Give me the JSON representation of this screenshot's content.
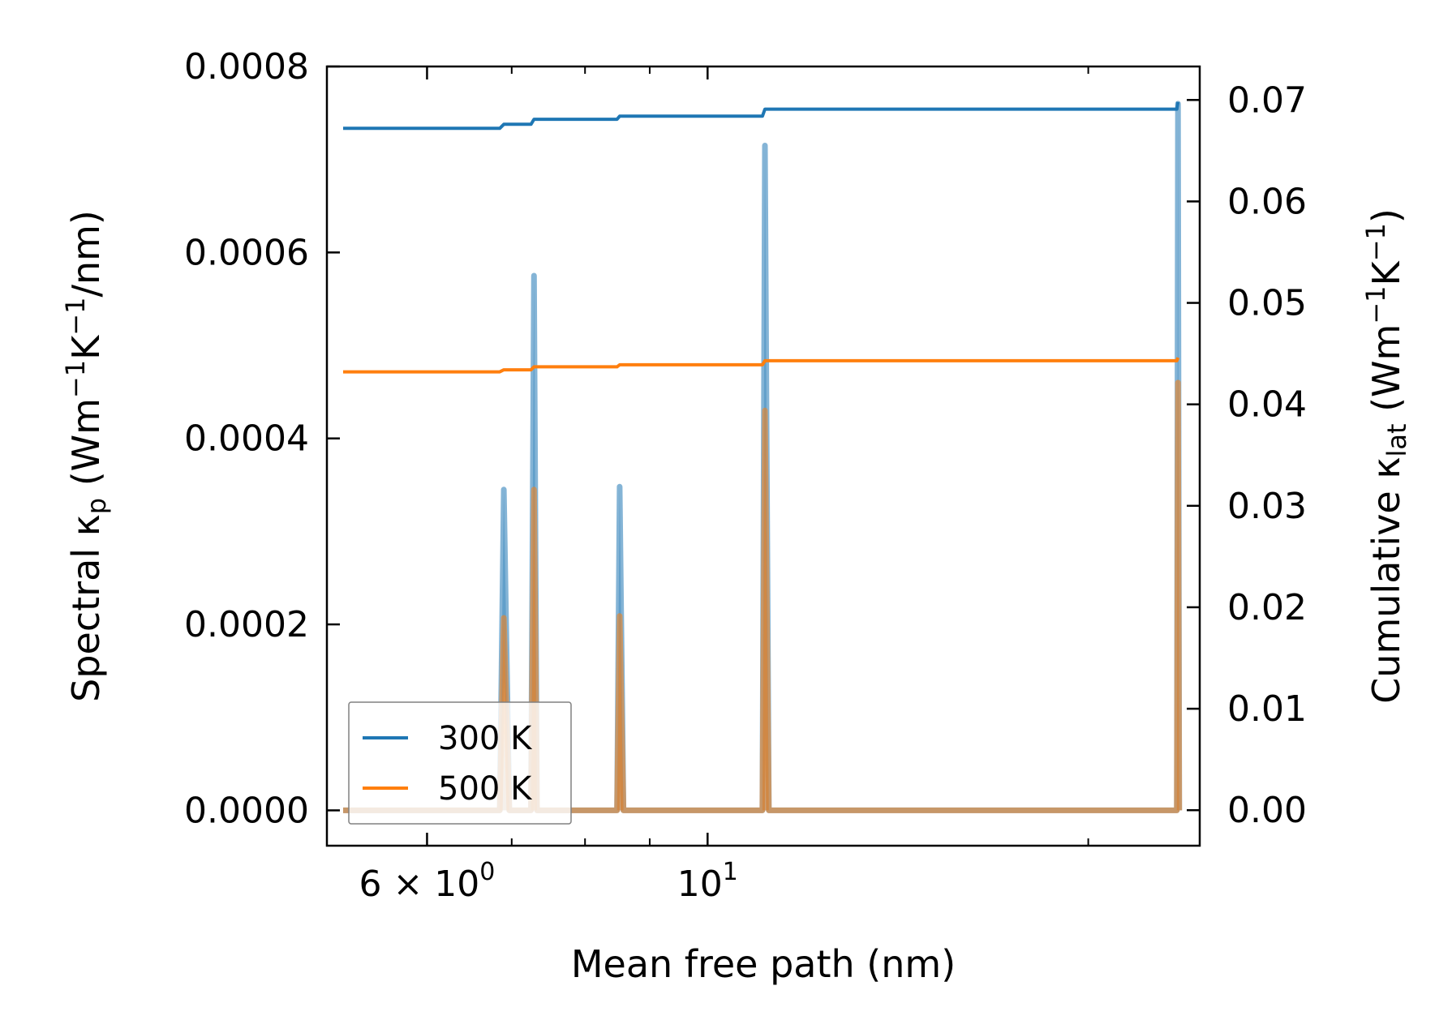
{
  "chart_data": {
    "type": "line",
    "xlabel": "Mean free path (nm)",
    "ylabel": {
      "pre": "Spectral κ",
      "sub": "p",
      "post": " (Wm",
      "sup1": "−1",
      "mid": "K",
      "sup2": "−1",
      "end": "/nm)"
    },
    "y2label": {
      "pre": "Cumulative κ",
      "sub": "lat",
      "post": " (Wm",
      "sup1": "−1",
      "mid": "K",
      "sup2": "−1",
      "end": ")"
    },
    "x_scale": "log",
    "xlim": [
      5.0,
      24.5
    ],
    "ylim": [
      -3.8e-05,
      0.0008
    ],
    "y2lim": [
      -0.0035,
      0.0733
    ],
    "x_ticks": [
      {
        "value": 6,
        "base": "6 × 10",
        "exp": "0"
      },
      {
        "value": 10,
        "base": "10",
        "exp": "1"
      }
    ],
    "x_minor_ticks": [
      5,
      7,
      8,
      9,
      20
    ],
    "y_ticks": [
      "0.0000",
      "0.0002",
      "0.0004",
      "0.0006",
      "0.0008"
    ],
    "y2_ticks": [
      "0.00",
      "0.01",
      "0.02",
      "0.03",
      "0.04",
      "0.05",
      "0.06",
      "0.07"
    ],
    "grid": false,
    "legend": {
      "position": "lower-left"
    },
    "series": [
      {
        "name": "300 K",
        "color": "#1f77b4",
        "spectral": [
          [
            5.15,
            0
          ],
          [
            6.85,
            0
          ],
          [
            6.9,
            0.000345
          ],
          [
            6.97,
            0
          ],
          [
            7.25,
            0
          ],
          [
            7.29,
            0.000575
          ],
          [
            7.33,
            0
          ],
          [
            8.48,
            0
          ],
          [
            8.52,
            0.000348
          ],
          [
            8.58,
            0
          ],
          [
            11.05,
            0
          ],
          [
            11.1,
            0.000715
          ],
          [
            11.18,
            0
          ],
          [
            23.5,
            0
          ],
          [
            23.55,
            0.00076
          ],
          [
            23.6,
            0
          ]
        ],
        "cumulative": [
          [
            5.15,
            0.0672
          ],
          [
            6.85,
            0.0672
          ],
          [
            6.9,
            0.0676
          ],
          [
            7.25,
            0.0676
          ],
          [
            7.29,
            0.0681
          ],
          [
            8.48,
            0.0681
          ],
          [
            8.52,
            0.0684
          ],
          [
            11.05,
            0.0684
          ],
          [
            11.1,
            0.0691
          ],
          [
            23.5,
            0.0691
          ],
          [
            23.55,
            0.0698
          ]
        ]
      },
      {
        "name": "500 K",
        "color": "#ff7f0e",
        "spectral": [
          [
            5.15,
            0
          ],
          [
            6.85,
            0
          ],
          [
            6.9,
            0.000207
          ],
          [
            6.97,
            0
          ],
          [
            7.25,
            0
          ],
          [
            7.29,
            0.000345
          ],
          [
            7.33,
            0
          ],
          [
            8.48,
            0
          ],
          [
            8.52,
            0.000209
          ],
          [
            8.58,
            0
          ],
          [
            11.05,
            0
          ],
          [
            11.1,
            0.00043
          ],
          [
            11.18,
            0
          ],
          [
            23.5,
            0
          ],
          [
            23.55,
            0.00046
          ],
          [
            23.6,
            0
          ]
        ],
        "cumulative": [
          [
            5.15,
            0.0432
          ],
          [
            6.85,
            0.0432
          ],
          [
            6.9,
            0.0434
          ],
          [
            7.25,
            0.0434
          ],
          [
            7.29,
            0.0437
          ],
          [
            8.48,
            0.0437
          ],
          [
            8.52,
            0.0439
          ],
          [
            11.05,
            0.0439
          ],
          [
            11.1,
            0.0443
          ],
          [
            23.5,
            0.0443
          ],
          [
            23.55,
            0.0446
          ]
        ]
      }
    ]
  }
}
